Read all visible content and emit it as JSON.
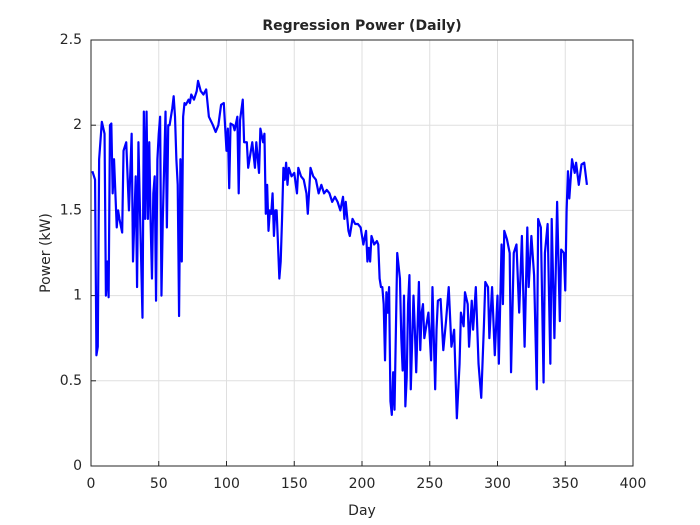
{
  "chart_data": {
    "type": "line",
    "title": "Regression Power (Daily)",
    "x_label": "Day",
    "y_label": "Power (kW)",
    "xlim": [
      0,
      400
    ],
    "xticks": [
      0,
      50,
      100,
      150,
      200,
      250,
      300,
      350,
      400
    ],
    "ylim": [
      0,
      2.5
    ],
    "yticks": [
      0,
      0.5,
      1,
      1.5,
      2,
      2.5
    ],
    "grid": true,
    "series": [
      {
        "name": "Power",
        "color": "#0000ff",
        "x": [
          1,
          3,
          4,
          5,
          6,
          8,
          10,
          11,
          12,
          13,
          14,
          15,
          16,
          17,
          19,
          20,
          21,
          23,
          24,
          26,
          28,
          30,
          31,
          33,
          34,
          35,
          36,
          38,
          39,
          40,
          41,
          42,
          43,
          44,
          45,
          46,
          47,
          48,
          49,
          50,
          51,
          52,
          53,
          55,
          56,
          57,
          58,
          60,
          61,
          62,
          63,
          64,
          65,
          66,
          67,
          68,
          69,
          70,
          72,
          73,
          74,
          76,
          78,
          79,
          81,
          83,
          85,
          87,
          90,
          92,
          94,
          96,
          98,
          100,
          101,
          102,
          103,
          105,
          106,
          108,
          109,
          110,
          112,
          113,
          115,
          116,
          118,
          119,
          121,
          122,
          124,
          125,
          127,
          128,
          129,
          130,
          131,
          132,
          133,
          134,
          135,
          136,
          137,
          138,
          139,
          140,
          141,
          142,
          143,
          144,
          145,
          146,
          148,
          150,
          152,
          153,
          155,
          157,
          159,
          160,
          162,
          164,
          166,
          168,
          170,
          172,
          174,
          176,
          178,
          180,
          182,
          184,
          186,
          187,
          188,
          190,
          191,
          193,
          195,
          197,
          199,
          200,
          201,
          203,
          204,
          205,
          206,
          207,
          209,
          211,
          212,
          213,
          214,
          215,
          216,
          217,
          218,
          219,
          220,
          221,
          222,
          223,
          224,
          226,
          228,
          229,
          230,
          231,
          232,
          233,
          234,
          235,
          236,
          238,
          239,
          240,
          242,
          243,
          244,
          245,
          246,
          248,
          249,
          251,
          252,
          254,
          255,
          256,
          258,
          260,
          262,
          264,
          266,
          268,
          270,
          272,
          273,
          275,
          276,
          278,
          279,
          281,
          282,
          284,
          286,
          288,
          290,
          291,
          293,
          294,
          296,
          298,
          300,
          301,
          303,
          304,
          305,
          307,
          309,
          310,
          312,
          314,
          316,
          318,
          320,
          322,
          323,
          325,
          327,
          329,
          330,
          332,
          334,
          335,
          337,
          339,
          340,
          342,
          344,
          346,
          347,
          349,
          350,
          351,
          352,
          353,
          355,
          357,
          358,
          360,
          362,
          364,
          366
        ],
        "values": [
          1.73,
          1.68,
          0.65,
          0.7,
          1.8,
          2.02,
          1.95,
          1.0,
          1.2,
          0.99,
          2.0,
          2.01,
          1.6,
          1.8,
          1.4,
          1.5,
          1.45,
          1.37,
          1.85,
          1.9,
          1.5,
          1.95,
          1.2,
          1.7,
          1.05,
          1.9,
          1.55,
          0.87,
          2.08,
          1.45,
          2.08,
          1.45,
          1.9,
          1.43,
          1.1,
          1.6,
          1.7,
          0.97,
          1.8,
          1.95,
          2.05,
          1.0,
          1.45,
          2.08,
          1.4,
          2.0,
          2.0,
          2.1,
          2.17,
          2.05,
          1.8,
          1.65,
          0.88,
          1.8,
          1.2,
          2.05,
          2.13,
          2.12,
          2.15,
          2.13,
          2.18,
          2.15,
          2.2,
          2.26,
          2.2,
          2.18,
          2.21,
          2.05,
          2.0,
          1.96,
          2.0,
          2.12,
          2.13,
          1.85,
          1.98,
          1.63,
          2.01,
          2.0,
          1.97,
          2.05,
          1.6,
          2.03,
          2.15,
          1.9,
          1.9,
          1.75,
          1.85,
          1.9,
          1.75,
          1.9,
          1.72,
          1.98,
          1.9,
          1.95,
          1.48,
          1.65,
          1.38,
          1.5,
          1.48,
          1.6,
          1.35,
          1.5,
          1.5,
          1.3,
          1.1,
          1.2,
          1.45,
          1.75,
          1.68,
          1.78,
          1.65,
          1.75,
          1.7,
          1.72,
          1.6,
          1.75,
          1.7,
          1.68,
          1.6,
          1.48,
          1.75,
          1.7,
          1.68,
          1.6,
          1.65,
          1.6,
          1.62,
          1.6,
          1.55,
          1.58,
          1.55,
          1.5,
          1.58,
          1.45,
          1.55,
          1.38,
          1.35,
          1.45,
          1.42,
          1.42,
          1.4,
          1.35,
          1.3,
          1.38,
          1.2,
          1.28,
          1.2,
          1.35,
          1.3,
          1.32,
          1.3,
          1.1,
          1.05,
          1.05,
          0.95,
          0.62,
          1.02,
          0.9,
          1.05,
          0.38,
          0.3,
          0.55,
          0.33,
          1.25,
          1.1,
          0.75,
          0.56,
          1.0,
          0.35,
          0.52,
          0.95,
          1.12,
          0.45,
          1.0,
          0.8,
          0.55,
          1.08,
          0.68,
          0.9,
          0.95,
          0.75,
          0.85,
          0.9,
          0.62,
          1.05,
          0.45,
          0.8,
          0.97,
          0.98,
          0.68,
          0.85,
          1.05,
          0.7,
          0.8,
          0.28,
          0.6,
          0.9,
          0.82,
          1.02,
          0.95,
          0.7,
          0.97,
          0.8,
          1.05,
          0.6,
          0.4,
          0.83,
          1.08,
          1.05,
          0.75,
          1.05,
          0.65,
          1.0,
          0.6,
          1.3,
          0.95,
          1.38,
          1.33,
          1.25,
          0.55,
          1.25,
          1.3,
          0.9,
          1.35,
          0.7,
          1.4,
          1.05,
          1.35,
          1.12,
          0.45,
          1.45,
          1.4,
          0.49,
          1.25,
          1.42,
          0.6,
          1.45,
          0.75,
          1.55,
          0.85,
          1.27,
          1.25,
          1.03,
          1.5,
          1.73,
          1.57,
          1.8,
          1.72,
          1.78,
          1.65,
          1.77,
          1.78,
          1.65
        ]
      }
    ]
  }
}
